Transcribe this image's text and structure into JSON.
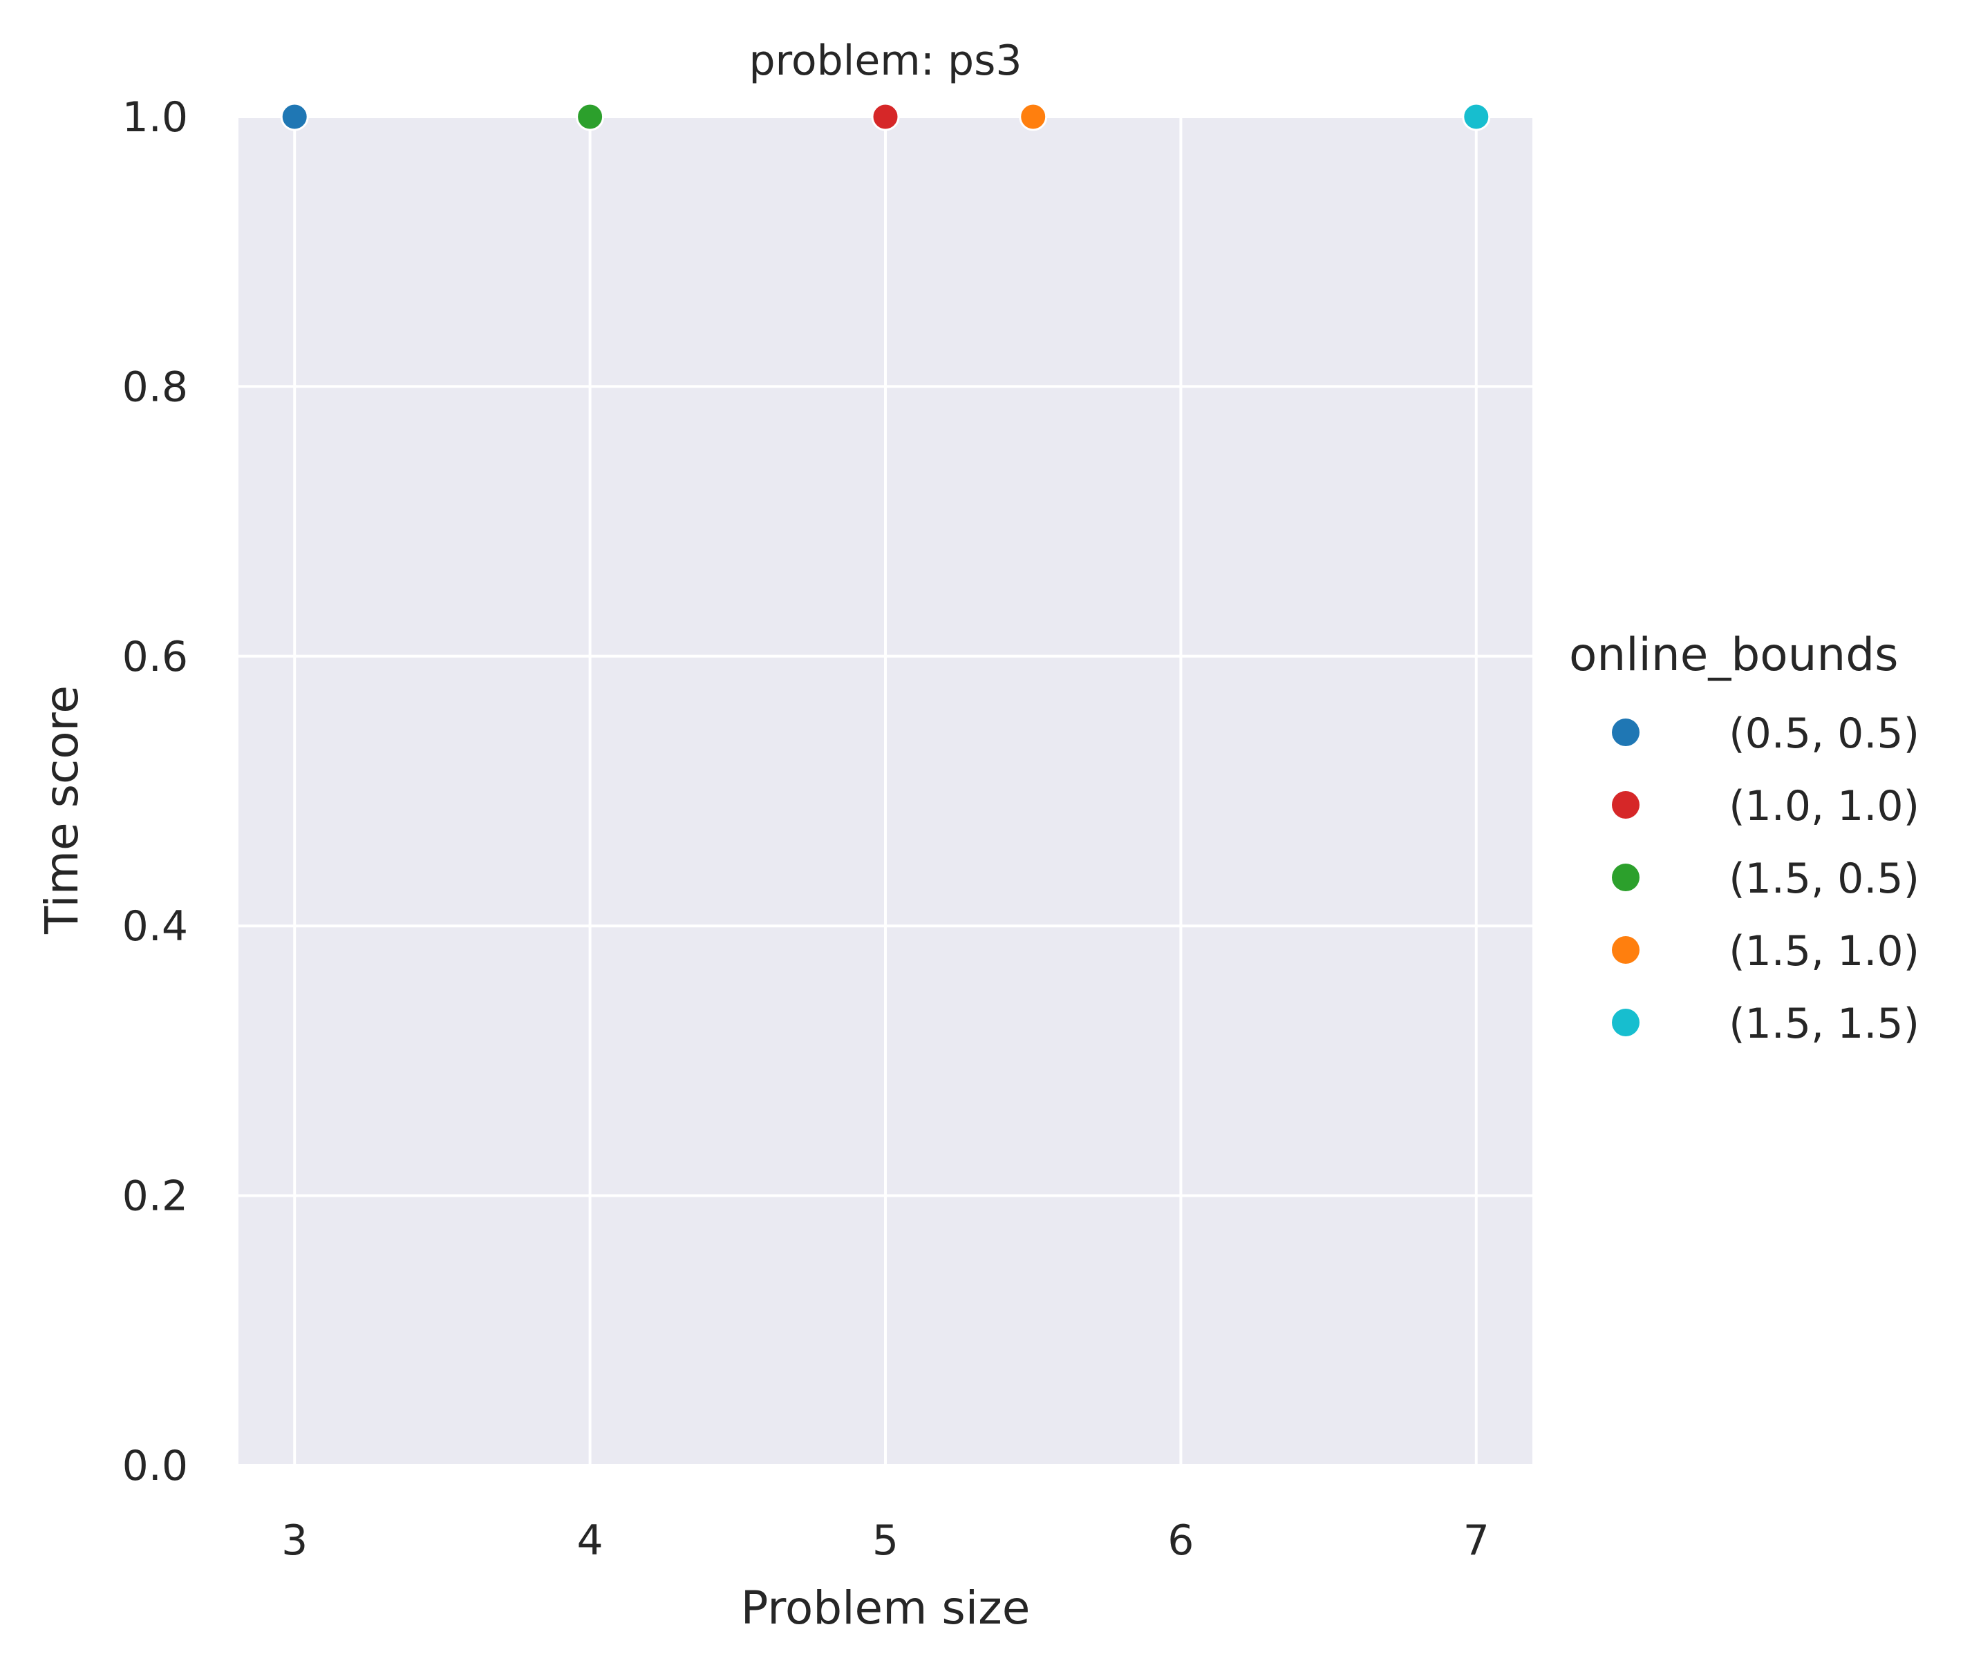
{
  "chart_data": {
    "type": "scatter",
    "title": "problem: ps3",
    "xlabel": "Problem size",
    "ylabel": "Time score",
    "xlim": [
      2.81,
      7.19
    ],
    "ylim": [
      0.0,
      1.0
    ],
    "x_ticks": [
      3,
      4,
      5,
      6,
      7
    ],
    "y_ticks": [
      0.0,
      0.2,
      0.4,
      0.6,
      0.8,
      1.0
    ],
    "y_tick_labels": [
      "0.0",
      "0.2",
      "0.4",
      "0.6",
      "0.8",
      "1.0"
    ],
    "grid": true,
    "background_color": "#eaeaf2",
    "grid_color": "#ffffff",
    "legend": {
      "title": "online_bounds",
      "placement": "right"
    },
    "series": [
      {
        "name": "(0.5, 0.5)",
        "color": "#1f77b4",
        "points": [
          {
            "x": 3,
            "y": 1.0
          }
        ]
      },
      {
        "name": "(1.0, 1.0)",
        "color": "#d62728",
        "points": [
          {
            "x": 5,
            "y": 1.0
          }
        ]
      },
      {
        "name": "(1.5, 0.5)",
        "color": "#2ca02c",
        "points": [
          {
            "x": 4,
            "y": 1.0
          }
        ]
      },
      {
        "name": "(1.5, 1.0)",
        "color": "#ff7f0e",
        "points": [
          {
            "x": 5.5,
            "y": 1.0
          }
        ]
      },
      {
        "name": "(1.5, 1.5)",
        "color": "#17becf",
        "points": [
          {
            "x": 7,
            "y": 1.0
          }
        ]
      }
    ]
  }
}
